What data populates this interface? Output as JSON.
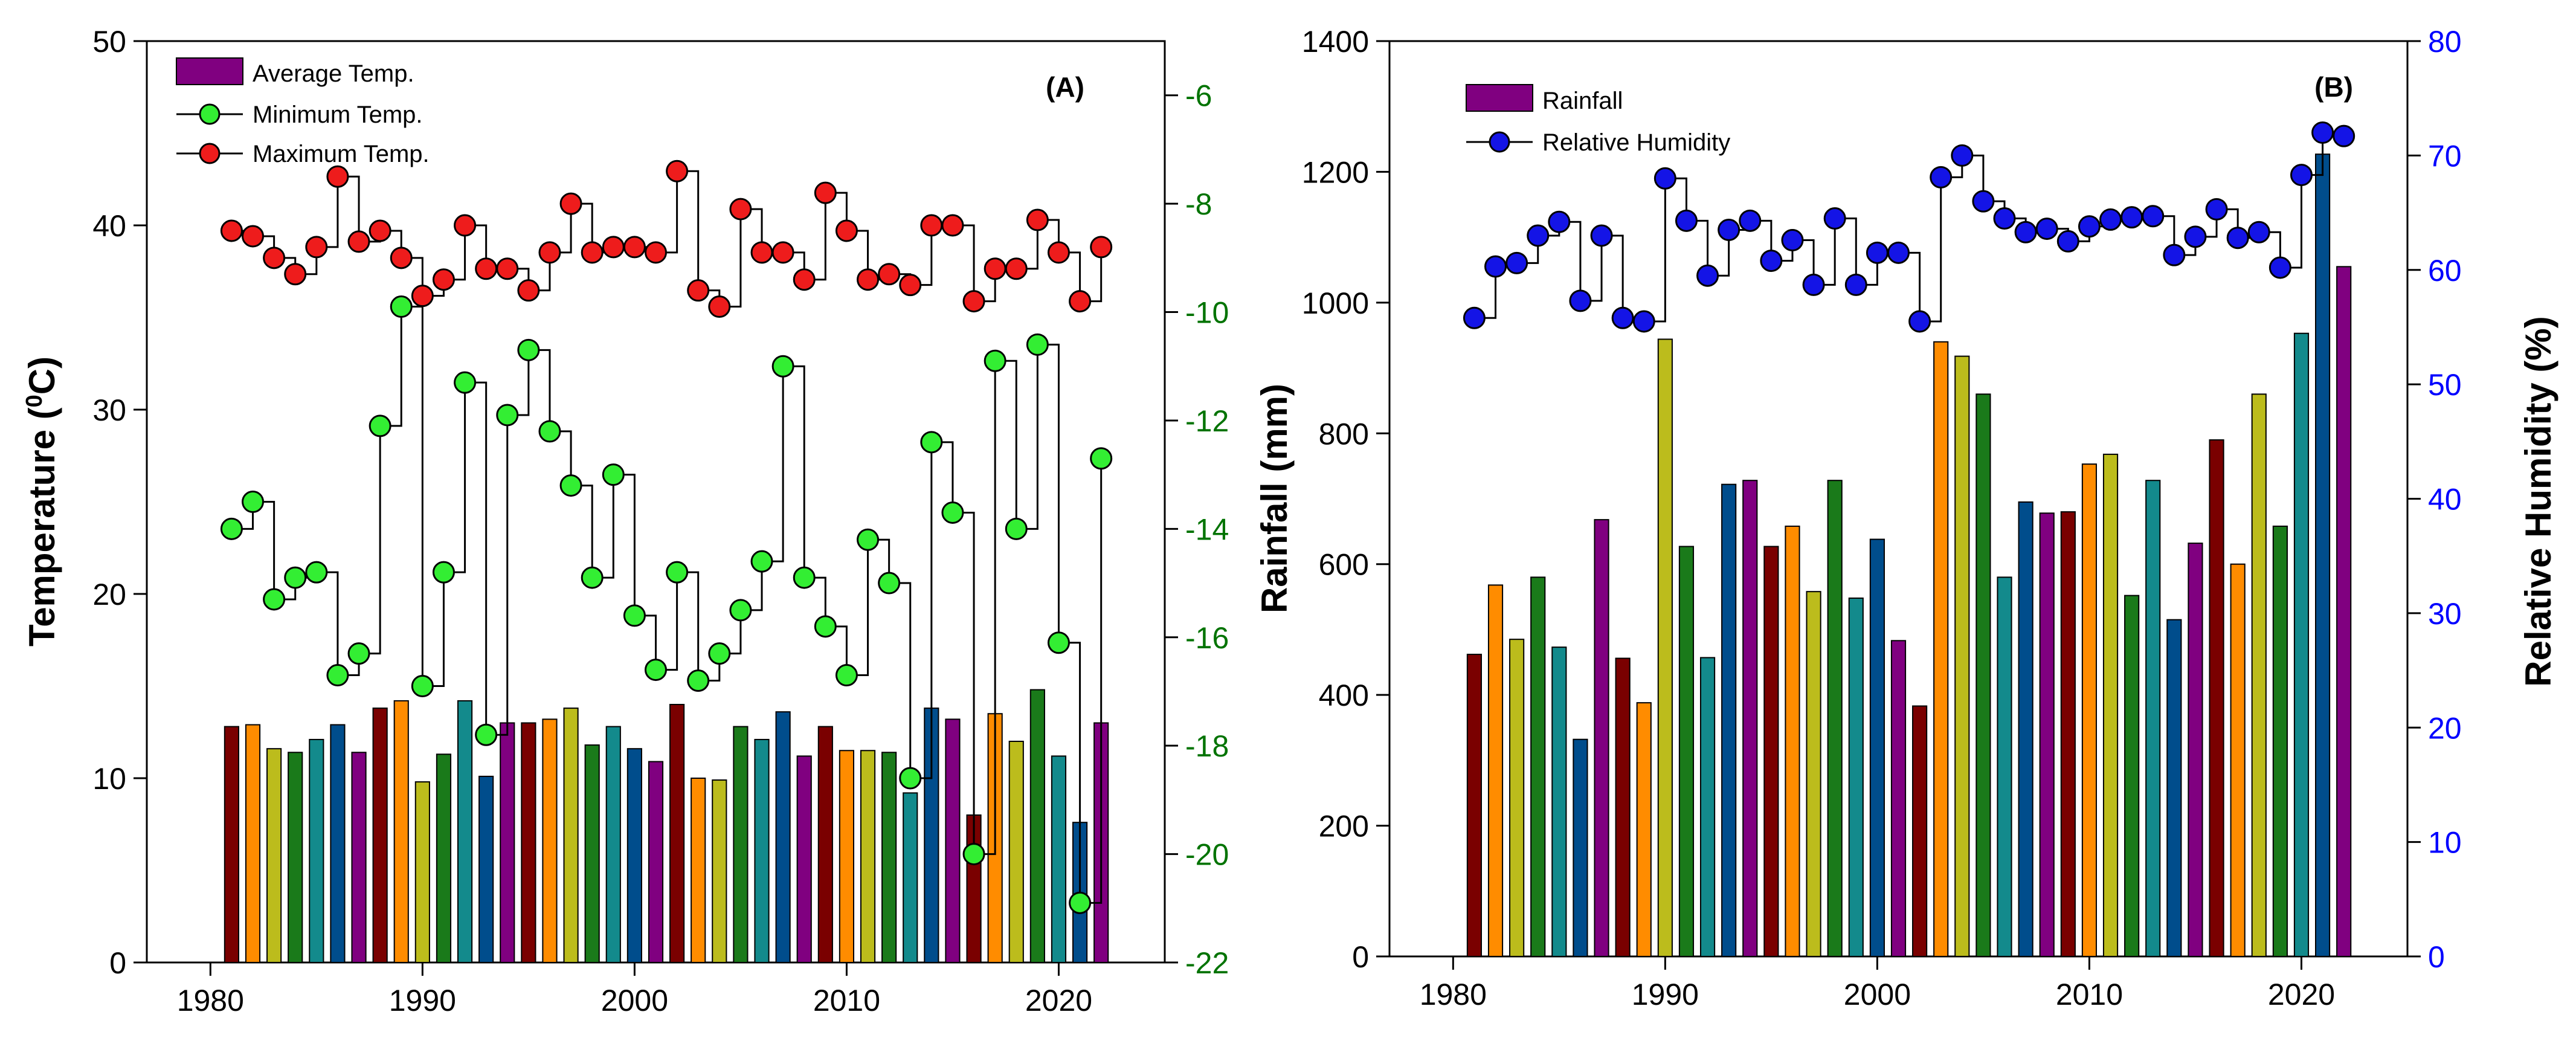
{
  "chart_data": [
    {
      "type": "bar+line",
      "panel_label": "(A)",
      "x": [
        1981,
        1982,
        1983,
        1984,
        1985,
        1986,
        1987,
        1988,
        1989,
        1990,
        1991,
        1992,
        1993,
        1994,
        1995,
        1996,
        1997,
        1998,
        1999,
        2000,
        2001,
        2002,
        2003,
        2004,
        2005,
        2006,
        2007,
        2008,
        2009,
        2010,
        2011,
        2012,
        2013,
        2014,
        2015,
        2016,
        2017,
        2018,
        2019,
        2020,
        2021,
        2022
      ],
      "xlim": [
        1977,
        2025
      ],
      "xticks": [
        1980,
        1990,
        2000,
        2010,
        2020
      ],
      "ylabel_left": "Temperature (",
      "ylabel_left_sup": "0",
      "ylabel_left_end": "C)",
      "ylim_left": [
        0,
        50
      ],
      "yticks_left": [
        0,
        10,
        20,
        30,
        40,
        50
      ],
      "ylim_right": [
        -22,
        -5
      ],
      "yticks_right": [
        -22,
        -20,
        -18,
        -16,
        -14,
        -12,
        -10,
        -8,
        -6
      ],
      "series": [
        {
          "name": "Average Temp.",
          "kind": "bar",
          "axis": "left",
          "values": [
            12.8,
            12.9,
            11.6,
            11.4,
            12.1,
            12.9,
            11.4,
            13.8,
            14.2,
            9.8,
            11.3,
            14.2,
            10.1,
            13.0,
            13.0,
            13.2,
            13.8,
            11.8,
            12.8,
            11.6,
            10.9,
            14.0,
            10.0,
            9.9,
            12.8,
            12.1,
            13.6,
            11.2,
            12.8,
            11.5,
            11.5,
            11.4,
            9.2,
            13.8,
            13.2,
            8.0,
            13.5,
            12.0,
            14.8,
            11.2,
            7.6,
            13.0
          ]
        },
        {
          "name": "Minimum Temp.",
          "kind": "step-line",
          "axis": "right",
          "values": [
            -14.0,
            -13.5,
            -15.3,
            -14.9,
            -14.8,
            -16.7,
            -16.3,
            -12.1,
            -9.9,
            -16.9,
            -14.8,
            -11.3,
            -17.8,
            -11.9,
            -10.7,
            -12.2,
            -13.2,
            -14.9,
            -13.0,
            -15.6,
            -16.6,
            -14.8,
            -16.8,
            -16.3,
            -15.5,
            -14.6,
            -11.0,
            -14.9,
            -15.8,
            -16.7,
            -14.2,
            -15.0,
            -18.6,
            -12.4,
            -13.7,
            -20.0,
            -10.9,
            -14.0,
            -10.6,
            -16.1,
            -20.9,
            -12.7
          ]
        },
        {
          "name": "Maximum Temp.",
          "kind": "step-line",
          "axis": "right",
          "values": [
            -8.5,
            -8.6,
            -9.0,
            -9.3,
            -8.8,
            -7.5,
            -8.7,
            -8.5,
            -9.0,
            -9.7,
            -9.4,
            -8.4,
            -9.2,
            -9.2,
            -9.6,
            -8.9,
            -8.0,
            -8.9,
            -8.8,
            -8.8,
            -8.9,
            -7.4,
            -9.6,
            -9.9,
            -8.1,
            -8.9,
            -8.9,
            -9.4,
            -7.8,
            -8.5,
            -9.4,
            -9.3,
            -9.5,
            -8.4,
            -8.4,
            -9.8,
            -9.2,
            -9.2,
            -8.3,
            -8.9,
            -9.8,
            -8.8
          ]
        }
      ],
      "legend": [
        "Average Temp.",
        "Minimum Temp.",
        "Maximum Temp."
      ]
    },
    {
      "type": "bar+line",
      "panel_label": "(B)",
      "x": [
        1981,
        1982,
        1983,
        1984,
        1985,
        1986,
        1987,
        1988,
        1989,
        1990,
        1991,
        1992,
        1993,
        1994,
        1995,
        1996,
        1997,
        1998,
        1999,
        2000,
        2001,
        2002,
        2003,
        2004,
        2005,
        2006,
        2007,
        2008,
        2009,
        2010,
        2011,
        2012,
        2013,
        2014,
        2015,
        2016,
        2017,
        2018,
        2019,
        2020,
        2021,
        2022
      ],
      "xlim": [
        1977,
        2025
      ],
      "xticks": [
        1980,
        1990,
        2000,
        2010,
        2020
      ],
      "ylabel_left": "Rainfall (mm)",
      "ylim_left": [
        0,
        1400
      ],
      "yticks_left": [
        0,
        200,
        400,
        600,
        800,
        1000,
        1200,
        1400
      ],
      "ylabel_right": "Relative Humidity (%)",
      "ylim_right": [
        0,
        80
      ],
      "yticks_right": [
        0,
        10,
        20,
        30,
        40,
        50,
        60,
        70,
        80
      ],
      "series": [
        {
          "name": "Rainfall",
          "kind": "bar",
          "axis": "left",
          "values": [
            462,
            568,
            485,
            580,
            473,
            332,
            668,
            456,
            388,
            944,
            627,
            457,
            722,
            728,
            627,
            658,
            558,
            728,
            548,
            638,
            483,
            383,
            940,
            918,
            860,
            580,
            695,
            678,
            680,
            753,
            768,
            552,
            728,
            515,
            632,
            790,
            600,
            860,
            658,
            953,
            1227,
            1055
          ]
        },
        {
          "name": "Relative Humidity",
          "kind": "step-line",
          "axis": "right",
          "values": [
            55.8,
            60.3,
            60.6,
            63.0,
            64.2,
            57.3,
            63.0,
            55.8,
            55.5,
            68.0,
            64.3,
            59.5,
            63.5,
            64.3,
            60.8,
            62.6,
            58.7,
            64.5,
            58.7,
            61.5,
            61.5,
            55.5,
            68.1,
            70.0,
            66.0,
            64.5,
            63.3,
            63.6,
            62.5,
            63.8,
            64.4,
            64.6,
            64.7,
            61.3,
            62.9,
            65.3,
            62.8,
            63.3,
            60.2,
            68.3,
            72.0,
            71.7
          ]
        }
      ],
      "legend": [
        "Rainfall",
        "Relative Humidity"
      ]
    }
  ],
  "colors": {
    "bar_cycle": [
      "#7a0000",
      "#ff8c00",
      "#bcbc1c",
      "#1a7a1a",
      "#138a8c",
      "#004d8c",
      "#800080"
    ],
    "min_marker": "#33ee33",
    "max_marker": "#ee1c1c",
    "rh_marker": "#1414e6",
    "green_axis": "#007300",
    "blue_axis": "#0000ff"
  }
}
